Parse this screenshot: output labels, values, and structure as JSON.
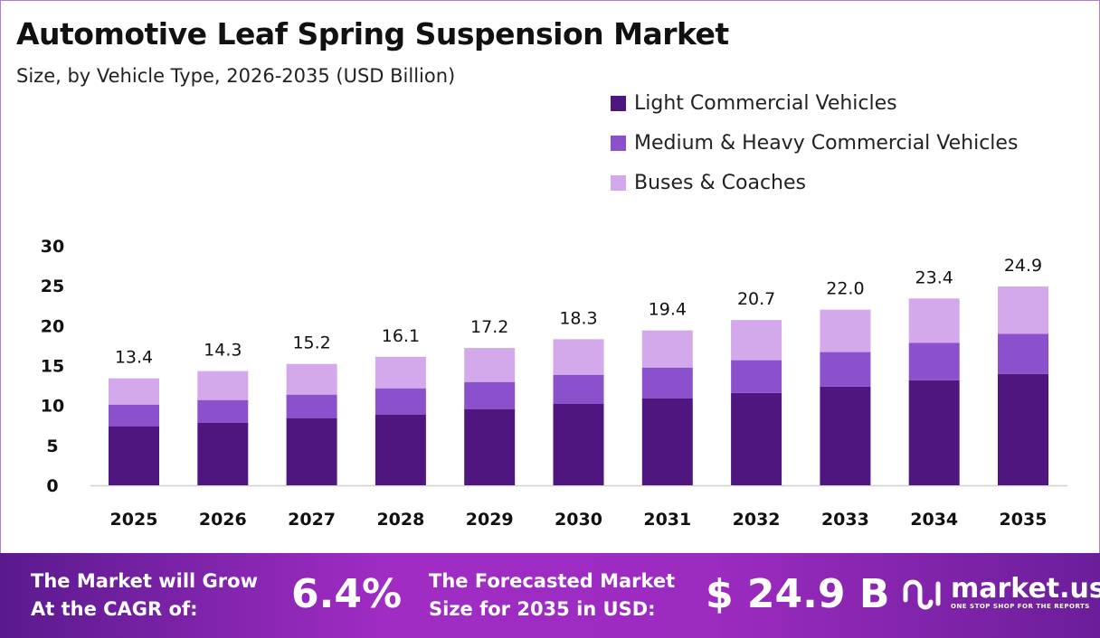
{
  "title": "Automotive Leaf Spring Suspension Market",
  "subtitle": "Size, by Vehicle Type, 2026-2035 (USD Billion)",
  "chart_data": {
    "type": "bar",
    "stacked": true,
    "categories": [
      "2025",
      "2026",
      "2027",
      "2028",
      "2029",
      "2030",
      "2031",
      "2032",
      "2033",
      "2034",
      "2035"
    ],
    "series": [
      {
        "name": "Light Commercial Vehicles",
        "color": "#4f1680",
        "values": [
          7.4,
          7.85,
          8.42,
          8.87,
          9.55,
          10.19,
          10.87,
          11.56,
          12.36,
          13.16,
          13.95
        ]
      },
      {
        "name": "Medium & Heavy Commercial Vehicles",
        "color": "#8b50cb",
        "values": [
          2.71,
          2.83,
          2.94,
          3.28,
          3.39,
          3.65,
          3.88,
          4.11,
          4.33,
          4.67,
          5.02
        ]
      },
      {
        "name": "Buses & Coaches",
        "color": "#d3a9eb",
        "values": [
          3.29,
          3.62,
          3.84,
          3.95,
          4.26,
          4.46,
          4.65,
          5.03,
          5.31,
          5.57,
          5.93
        ]
      }
    ],
    "totals": [
      "13.4",
      "14.3",
      "15.2",
      "16.1",
      "17.2",
      "18.3",
      "19.4",
      "20.7",
      "22.0",
      "23.4",
      "24.9"
    ],
    "yticks": [
      "0",
      "5",
      "10",
      "15",
      "20",
      "25",
      "30"
    ],
    "ylim": [
      0,
      30
    ],
    "grid": false,
    "legend": "top-right"
  },
  "footer": {
    "cagr_label_1": "The Market will Grow",
    "cagr_label_2": "At the CAGR of:",
    "cagr_value": "6.4%",
    "forecast_label_1": "The Forecasted Market",
    "forecast_label_2": "Size for 2035 in USD:",
    "forecast_value": "$ 24.9 B",
    "brand": "market.us",
    "brand_tagline": "ONE STOP SHOP FOR THE REPORTS"
  }
}
